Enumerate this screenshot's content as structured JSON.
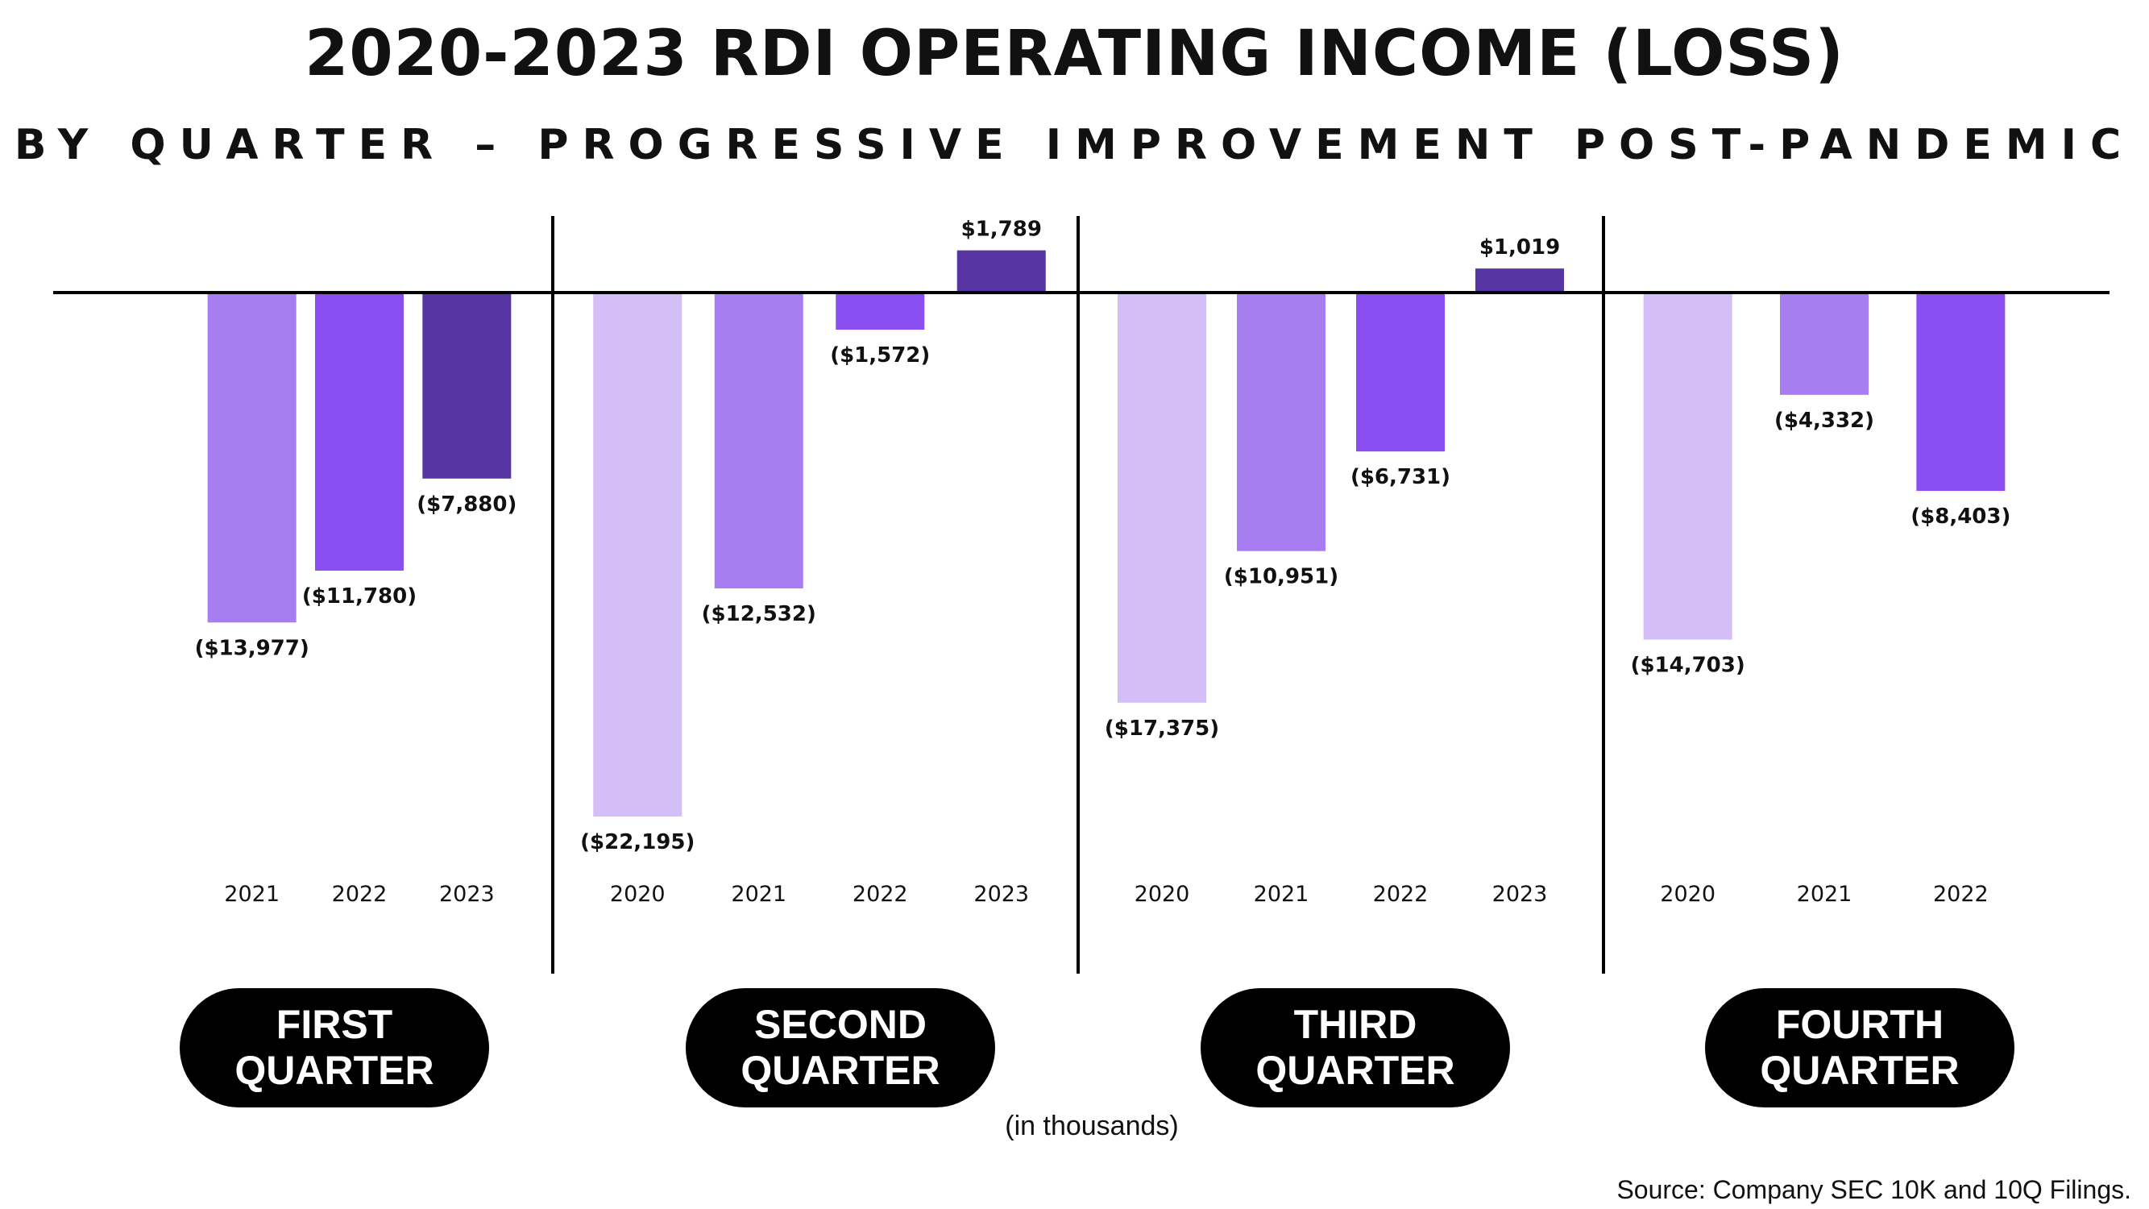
{
  "title": "2020-2023 RDI OPERATING INCOME (LOSS)",
  "subtitle": "BY QUARTER – PROGRESSIVE IMPROVEMENT POST-PANDEMIC",
  "units_note": "(in thousands)",
  "source": "Source: Company SEC 10K and 10Q Filings.",
  "quarters": [
    {
      "line1": "FIRST",
      "line2": "QUARTER"
    },
    {
      "line1": "SECOND",
      "line2": "QUARTER"
    },
    {
      "line1": "THIRD",
      "line2": "QUARTER"
    },
    {
      "line1": "FOURTH",
      "line2": "QUARTER"
    }
  ],
  "colors": {
    "2020": "#d4bef7",
    "2021": "#a87df2",
    "2022": "#8b4ef0",
    "2023": "#5735a3",
    "axis": "#000000"
  },
  "chart_data": {
    "type": "bar",
    "title": "2020-2023 RDI OPERATING INCOME (LOSS)",
    "subtitle": "BY QUARTER – PROGRESSIVE IMPROVEMENT POST-PANDEMIC",
    "ylabel": "(in thousands)",
    "ylim": [
      -22195,
      1789
    ],
    "groups": [
      {
        "name": "FIRST QUARTER",
        "bars": [
          {
            "year": "2021",
            "value": -13977,
            "label": "($13,977)"
          },
          {
            "year": "2022",
            "value": -11780,
            "label": "($11,780)"
          },
          {
            "year": "2023",
            "value": -7880,
            "label": "($7,880)"
          }
        ]
      },
      {
        "name": "SECOND QUARTER",
        "bars": [
          {
            "year": "2020",
            "value": -22195,
            "label": "($22,195)"
          },
          {
            "year": "2021",
            "value": -12532,
            "label": "($12,532)"
          },
          {
            "year": "2022",
            "value": -1572,
            "label": "($1,572)"
          },
          {
            "year": "2023",
            "value": 1789,
            "label": "$1,789"
          }
        ]
      },
      {
        "name": "THIRD QUARTER",
        "bars": [
          {
            "year": "2020",
            "value": -17375,
            "label": "($17,375)"
          },
          {
            "year": "2021",
            "value": -10951,
            "label": "($10,951)"
          },
          {
            "year": "2022",
            "value": -6731,
            "label": "($6,731)"
          },
          {
            "year": "2023",
            "value": 1019,
            "label": "$1,019"
          }
        ]
      },
      {
        "name": "FOURTH QUARTER",
        "bars": [
          {
            "year": "2020",
            "value": -14703,
            "label": "($14,703)"
          },
          {
            "year": "2021",
            "value": -4332,
            "label": "($4,332)"
          },
          {
            "year": "2022",
            "value": -8403,
            "label": "($8,403)"
          }
        ]
      }
    ]
  }
}
